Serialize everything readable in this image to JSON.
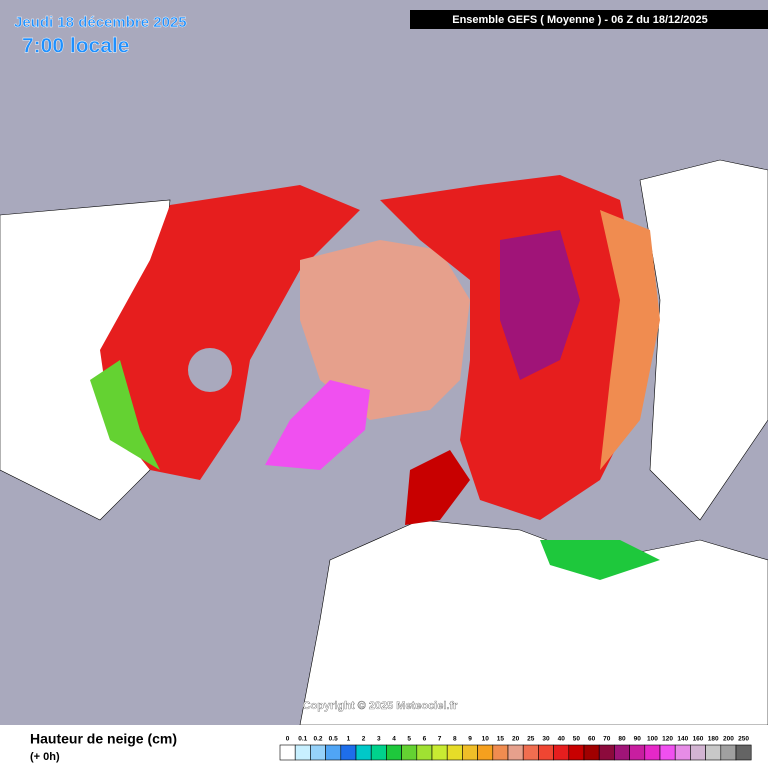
{
  "header": {
    "date": "Jeudi 18 décembre 2025",
    "time": "7:00 locale",
    "model": "Ensemble GEFS  ( Moyenne )  -  06 Z du 18/12/2025"
  },
  "copyright": "Copyright © 2025 Meteociel.fr",
  "legend": {
    "title": "Hauteur de neige (cm)",
    "step": "(+ 0h)",
    "labels": [
      "0",
      "0.1",
      "0.2",
      "0.5",
      "1",
      "2",
      "3",
      "4",
      "5",
      "6",
      "7",
      "8",
      "9",
      "10",
      "15",
      "20",
      "25",
      "30",
      "40",
      "50",
      "60",
      "70",
      "80",
      "90",
      "100",
      "120",
      "140",
      "160",
      "180",
      "200",
      "250"
    ],
    "colors": [
      "#ffffff",
      "#c8f0ff",
      "#96d2fa",
      "#50a5f5",
      "#1e6eeb",
      "#00c8c8",
      "#00d28c",
      "#1ec83c",
      "#64d232",
      "#a0e132",
      "#c8eb32",
      "#e6dc28",
      "#f0be28",
      "#f5a01e",
      "#f08c50",
      "#e6a08c",
      "#f06e50",
      "#f04632",
      "#e61e1e",
      "#c80000",
      "#a00000",
      "#8c0a3c",
      "#a01478",
      "#c81ea0",
      "#e628c8",
      "#f050f0",
      "#e68ce6",
      "#d2b4d2",
      "#c8c8c8",
      "#a0a0a0",
      "#646464"
    ]
  }
}
